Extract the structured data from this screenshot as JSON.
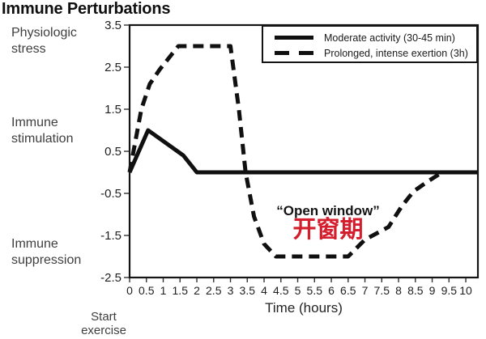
{
  "side_labels": [
    [
      "Physiologic",
      "stress"
    ],
    [
      "Immune",
      "stimulation"
    ],
    [
      "Immune",
      "suppression"
    ]
  ],
  "chart_data": {
    "type": "line",
    "title": "Immune Perturbations",
    "xlabel": "Time (hours)",
    "xlim": [
      0,
      10.36
    ],
    "ylim": [
      -2.5,
      3.5
    ],
    "x_ticks": [
      0,
      0.5,
      1,
      1.5,
      2,
      2.5,
      3,
      3.5,
      4,
      4.5,
      5,
      5.5,
      6,
      6.5,
      7,
      7.5,
      8,
      8.5,
      9,
      9.5,
      10
    ],
    "y_ticks": [
      3.5,
      2.5,
      1.5,
      0.5,
      -0.5,
      -1.5,
      -2.5
    ],
    "y_category_labels": [
      "Physiologic stress",
      "Immune stimulation",
      "Immune suppression"
    ],
    "grid": false,
    "legend_position": "top-right inside",
    "line_color": "#101010",
    "series": [
      {
        "name": "Moderate activity (30-45 min)",
        "line_style": "solid",
        "points": [
          [
            0,
            0
          ],
          [
            0.55,
            1.0
          ],
          [
            1.6,
            0.4
          ],
          [
            2.0,
            0
          ],
          [
            10.36,
            0
          ]
        ]
      },
      {
        "name": "Prolonged, intense exertion (3h)",
        "line_style": "dashed",
        "points": [
          [
            0,
            0
          ],
          [
            0.35,
            1.5
          ],
          [
            0.6,
            2.1
          ],
          [
            0.9,
            2.45
          ],
          [
            1.2,
            2.75
          ],
          [
            1.45,
            3.0
          ],
          [
            3.0,
            3.0
          ],
          [
            3.25,
            1.5
          ],
          [
            3.45,
            0
          ],
          [
            3.7,
            -1.05
          ],
          [
            4.0,
            -1.7
          ],
          [
            4.35,
            -2.0
          ],
          [
            6.5,
            -2.0
          ],
          [
            7.0,
            -1.6
          ],
          [
            7.7,
            -1.3
          ],
          [
            8.1,
            -0.8
          ],
          [
            8.45,
            -0.45
          ],
          [
            8.9,
            -0.2
          ],
          [
            9.3,
            0
          ],
          [
            10.36,
            0
          ]
        ]
      }
    ],
    "annotations": {
      "open_window": "“Open window”",
      "open_window_zh": "开窗期",
      "open_window_zh_color": "#d41e2d",
      "start_label_line1": "Start",
      "start_label_line2": "exercise"
    }
  }
}
